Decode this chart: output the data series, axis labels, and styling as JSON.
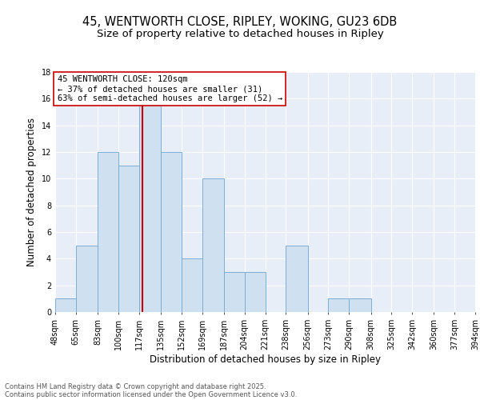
{
  "title1": "45, WENTWORTH CLOSE, RIPLEY, WOKING, GU23 6DB",
  "title2": "Size of property relative to detached houses in Ripley",
  "xlabel": "Distribution of detached houses by size in Ripley",
  "ylabel": "Number of detached properties",
  "bin_edges": [
    48,
    65,
    83,
    100,
    117,
    135,
    152,
    169,
    187,
    204,
    221,
    238,
    256,
    273,
    290,
    308,
    325,
    342,
    360,
    377,
    394
  ],
  "counts": [
    1,
    5,
    12,
    11,
    16,
    12,
    4,
    10,
    3,
    3,
    0,
    5,
    0,
    1,
    1,
    0,
    0,
    0,
    0,
    0
  ],
  "property_size": 120,
  "bar_facecolor": "#cfe0f0",
  "bar_edgecolor": "#7aaed6",
  "redline_color": "#cc0000",
  "annotation_line1": "45 WENTWORTH CLOSE: 120sqm",
  "annotation_line2": "← 37% of detached houses are smaller (31)",
  "annotation_line3": "63% of semi-detached houses are larger (52) →",
  "annotation_box_edgecolor": "#cc0000",
  "annotation_box_facecolor": "white",
  "ylim": [
    0,
    18
  ],
  "yticks": [
    0,
    2,
    4,
    6,
    8,
    10,
    12,
    14,
    16,
    18
  ],
  "background_color": "#e8eef8",
  "grid_color": "#d0d8e8",
  "footer_text1": "Contains HM Land Registry data © Crown copyright and database right 2025.",
  "footer_text2": "Contains public sector information licensed under the Open Government Licence v3.0.",
  "title_fontsize": 10.5,
  "subtitle_fontsize": 9.5,
  "ylabel_fontsize": 8.5,
  "xlabel_fontsize": 8.5,
  "tick_fontsize": 7,
  "annotation_fontsize": 7.5,
  "footer_fontsize": 6
}
